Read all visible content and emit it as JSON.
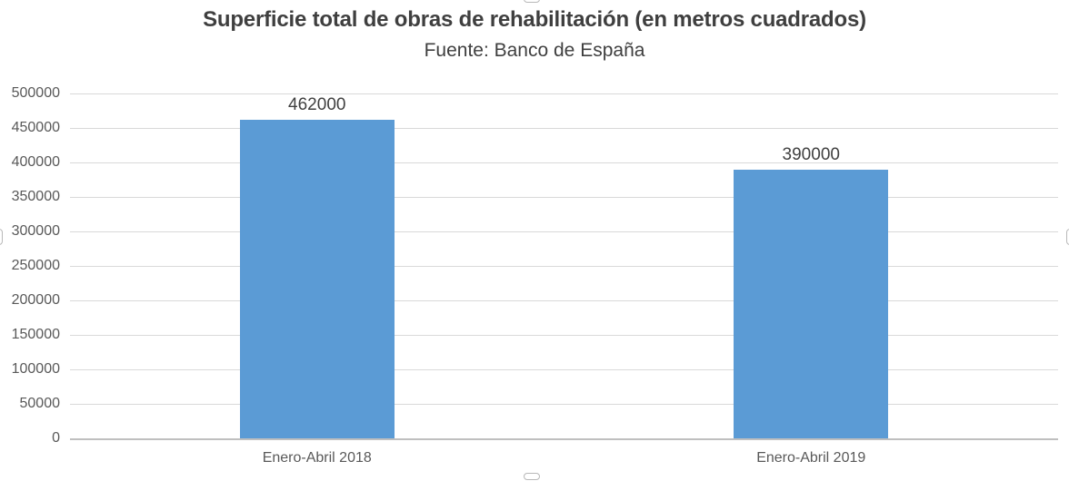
{
  "chart_data": {
    "type": "bar",
    "title": "Superficie total de obras de rehabilitación (en metros cuadrados)",
    "subtitle": "Fuente: Banco de España",
    "categories": [
      "Enero-Abril 2018",
      "Enero-Abril 2019"
    ],
    "values": [
      462000,
      390000
    ],
    "data_labels": [
      "462000",
      "390000"
    ],
    "ylim": [
      0,
      500000
    ],
    "ytick_step": 50000,
    "ytick_labels": [
      "0",
      "50000",
      "100000",
      "150000",
      "200000",
      "250000",
      "300000",
      "350000",
      "400000",
      "450000",
      "500000"
    ],
    "grid": true,
    "legend": "none",
    "bar_color": "#5b9bd5"
  },
  "colors": {
    "background": "#ffffff",
    "title_text": "#3f3f3f",
    "axis_label_text": "#595959",
    "data_label_text": "#404040",
    "gridline": "#d9d9d9",
    "axis_line": "#bfbfbf",
    "bar_fill": "#5b9bd5",
    "selection_handle_border": "#b8b8b8"
  },
  "selection": {
    "state": "chart-selected"
  }
}
